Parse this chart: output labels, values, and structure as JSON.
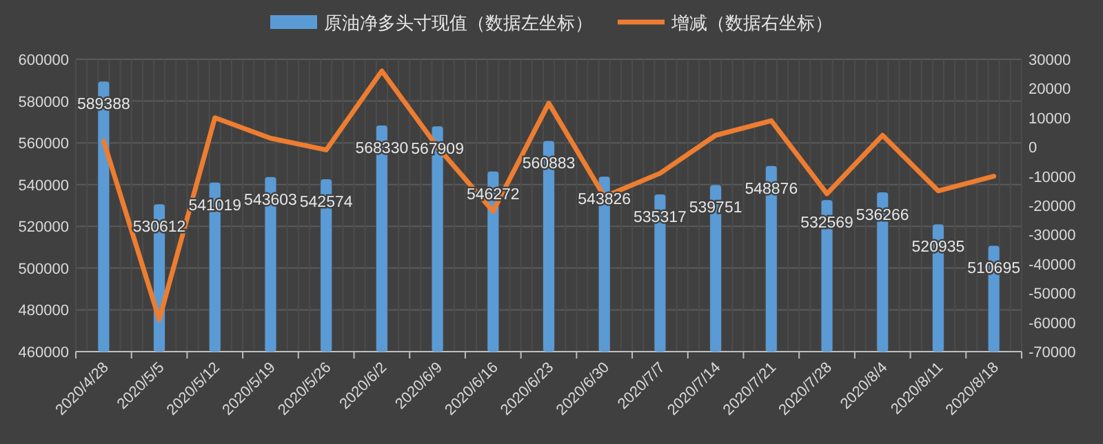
{
  "chart_data": {
    "type": "bar",
    "categories": [
      "2020/4/28",
      "2020/5/5",
      "2020/5/12",
      "2020/5/19",
      "2020/5/26",
      "2020/6/2",
      "2020/6/9",
      "2020/6/16",
      "2020/6/23",
      "2020/6/30",
      "2020/7/7",
      "2020/7/14",
      "2020/7/21",
      "2020/7/28",
      "2020/8/4",
      "2020/8/11",
      "2020/8/18"
    ],
    "series": [
      {
        "name": "原油净多头寸现值（数据左坐标）",
        "color": "#5b9bd5",
        "values": [
          589388,
          530612,
          541019,
          543603,
          542574,
          568330,
          567909,
          546272,
          560883,
          543826,
          535317,
          539751,
          548876,
          532569,
          536266,
          520935,
          510695
        ],
        "value_labels": [
          "589388",
          "530612",
          "541019",
          "543603",
          "542574",
          "568330",
          "567909",
          "546272",
          "560883",
          "543826",
          "535317",
          "539751",
          "548876",
          "532569",
          "536266",
          "520935",
          "510695"
        ]
      },
      {
        "name": "增减（数据右坐标）",
        "type": "line",
        "axis": "y2",
        "color": "#ed7d31",
        "values": [
          2000,
          -59000,
          10000,
          3000,
          -1000,
          26000,
          0,
          -22000,
          15000,
          -17000,
          -9000,
          4000,
          9000,
          -16000,
          4000,
          -15000,
          -10000
        ]
      }
    ],
    "ylim": [
      460000,
      600000
    ],
    "yticks": [
      460000,
      480000,
      500000,
      520000,
      540000,
      560000,
      580000,
      600000
    ],
    "y2lim": [
      -70000,
      30000
    ],
    "y2ticks": [
      -70000,
      -60000,
      -50000,
      -40000,
      -30000,
      -20000,
      -10000,
      0,
      10000,
      20000,
      30000
    ],
    "grid": true,
    "legend": "top",
    "marker": "none",
    "line_style": "solid"
  }
}
